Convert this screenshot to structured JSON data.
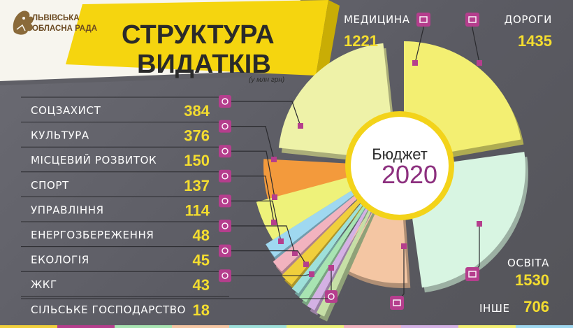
{
  "organization": {
    "line1": "ЛЬВІВСЬКА",
    "line2": "ОБЛАСНА РАДА",
    "logo_icon": "lion-emblem-icon"
  },
  "title": {
    "line1": "СТРУКТУРА",
    "line2": "ВИДАТКІВ",
    "unit": "(у млн грн)"
  },
  "center": {
    "label": "Бюджет",
    "year": "2020"
  },
  "colors": {
    "banner": "#f5d50f",
    "value_text": "#f4dd2f",
    "icon_badge": "#b53e8d",
    "medicine": "#eef2a8",
    "roads": "#f3ef72",
    "education": "#d8f5e2",
    "other": "#f4c6a3",
    "social": "#f39a3c",
    "culture": "#eef27a",
    "local_dev": "#9fd8f0",
    "sport": "#f2b3bf",
    "management": "#f0cf3c",
    "energy": "#9ee0da",
    "ecology": "#a8e4b2",
    "housing": "#d4b1e4",
    "agriculture": "#c6dfa6"
  },
  "chart_data": {
    "type": "pie",
    "title": "СТРУКТУРА ВИДАТКІВ",
    "unit": "(у млн грн)",
    "series": [
      {
        "name": "Бюджет 2020",
        "values": [
          1221,
          1435,
          1530,
          706,
          384,
          376,
          150,
          137,
          114,
          48,
          45,
          43,
          18
        ]
      }
    ],
    "categories": [
      "МЕДИЦИНА",
      "ДОРОГИ",
      "ОСВІТА",
      "ІНШЕ",
      "СОЦЗАХИСТ",
      "КУЛЬТУРА",
      "МІСЦЕВИЙ РОЗВИТОК",
      "СПОРТ",
      "УПРАВЛІННЯ",
      "ЕНЕРГОЗБЕРЕЖЕННЯ",
      "ЕКОЛОГІЯ",
      "ЖКГ",
      "СІЛЬСЬКЕ ГОСПОДАРСТВО"
    ],
    "left_items": [
      {
        "label": "СОЦЗАХИСТ",
        "value": 384,
        "icon": "social-protection-icon"
      },
      {
        "label": "КУЛЬТУРА",
        "value": 376,
        "icon": "theatre-masks-icon"
      },
      {
        "label": "МІСЦЕВИЙ РОЗВИТОК",
        "value": 150,
        "icon": "local-development-icon"
      },
      {
        "label": "СПОРТ",
        "value": 137,
        "icon": "sport-runner-icon"
      },
      {
        "label": "УПРАВЛІННЯ",
        "value": 114,
        "icon": "management-chart-icon"
      },
      {
        "label": "ЕНЕРГОЗБЕРЕЖЕННЯ",
        "value": 48,
        "icon": "energy-bulb-icon"
      },
      {
        "label": "ЕКОЛОГІЯ",
        "value": 45,
        "icon": "ecology-leaf-icon"
      },
      {
        "label": "ЖКГ",
        "value": 43,
        "icon": "housing-building-icon"
      },
      {
        "label": "СІЛЬСЬКЕ ГОСПОДАРСТВО",
        "value": 18,
        "icon": "agriculture-tractor-icon"
      }
    ],
    "big_items": [
      {
        "label": "МЕДИЦИНА",
        "value": 1221,
        "icon": "medical-kit-icon"
      },
      {
        "label": "ДОРОГИ",
        "value": 1435,
        "icon": "road-icon"
      },
      {
        "label": "ОСВІТА",
        "value": 1530,
        "icon": "education-books-icon"
      },
      {
        "label": "ІНШЕ",
        "value": 706,
        "icon": "other-coins-icon"
      }
    ]
  }
}
